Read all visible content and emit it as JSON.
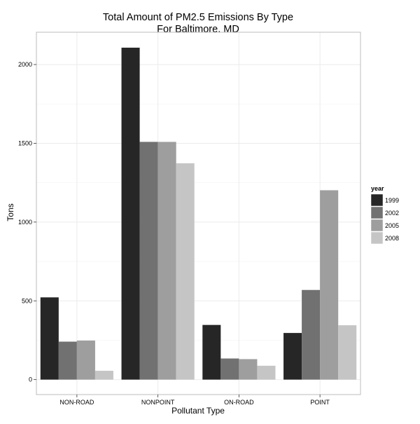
{
  "chart_data": {
    "type": "bar",
    "title": "Total Amount of PM2.5 Emissions By Type",
    "subtitle": "For Baltimore, MD",
    "xlabel": "Pollutant Type",
    "ylabel": "Tons",
    "categories": [
      "NON-ROAD",
      "NONPOINT",
      "ON-ROAD",
      "POINT"
    ],
    "series": [
      {
        "name": "1999",
        "color": "#262626",
        "values": [
          522,
          2107,
          347,
          296
        ]
      },
      {
        "name": "2002",
        "color": "#717171",
        "values": [
          241,
          1509,
          134,
          569
        ]
      },
      {
        "name": "2005",
        "color": "#9e9e9e",
        "values": [
          248,
          1509,
          130,
          1202
        ]
      },
      {
        "name": "2008",
        "color": "#c5c5c5",
        "values": [
          56,
          1373,
          88,
          345
        ]
      }
    ],
    "yticks": [
      0,
      500,
      1000,
      1500,
      2000
    ],
    "ylim": [
      -95,
      2205
    ],
    "grid": true,
    "legend": {
      "title": "year",
      "position": "right"
    }
  }
}
